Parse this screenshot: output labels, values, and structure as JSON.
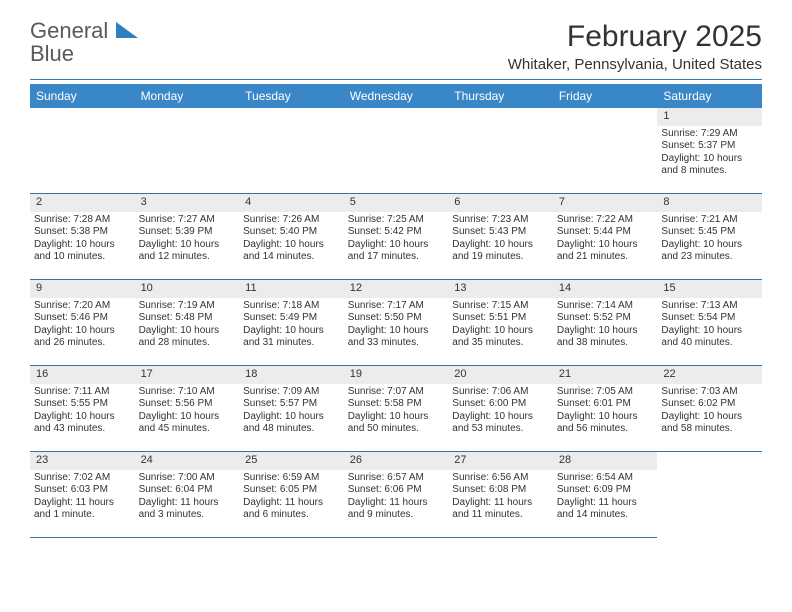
{
  "logo": {
    "text_gray": "General",
    "text_blue": "Blue",
    "shape_color": "#2f7fbf"
  },
  "header": {
    "title": "February 2025",
    "location": "Whitaker, Pennsylvania, United States"
  },
  "colors": {
    "header_bg": "#3a87c7",
    "header_text": "#ffffff",
    "divider": "#2f7fbf",
    "daynum_bg": "#ececec",
    "cell_border": "#3a6fa0",
    "text": "#333333",
    "logo_gray": "#5a5a5a"
  },
  "weekdays": [
    "Sunday",
    "Monday",
    "Tuesday",
    "Wednesday",
    "Thursday",
    "Friday",
    "Saturday"
  ],
  "grid": {
    "leading_empty": 6,
    "days": [
      {
        "n": "1",
        "sunrise": "Sunrise: 7:29 AM",
        "sunset": "Sunset: 5:37 PM",
        "day1": "Daylight: 10 hours",
        "day2": "and 8 minutes."
      },
      {
        "n": "2",
        "sunrise": "Sunrise: 7:28 AM",
        "sunset": "Sunset: 5:38 PM",
        "day1": "Daylight: 10 hours",
        "day2": "and 10 minutes."
      },
      {
        "n": "3",
        "sunrise": "Sunrise: 7:27 AM",
        "sunset": "Sunset: 5:39 PM",
        "day1": "Daylight: 10 hours",
        "day2": "and 12 minutes."
      },
      {
        "n": "4",
        "sunrise": "Sunrise: 7:26 AM",
        "sunset": "Sunset: 5:40 PM",
        "day1": "Daylight: 10 hours",
        "day2": "and 14 minutes."
      },
      {
        "n": "5",
        "sunrise": "Sunrise: 7:25 AM",
        "sunset": "Sunset: 5:42 PM",
        "day1": "Daylight: 10 hours",
        "day2": "and 17 minutes."
      },
      {
        "n": "6",
        "sunrise": "Sunrise: 7:23 AM",
        "sunset": "Sunset: 5:43 PM",
        "day1": "Daylight: 10 hours",
        "day2": "and 19 minutes."
      },
      {
        "n": "7",
        "sunrise": "Sunrise: 7:22 AM",
        "sunset": "Sunset: 5:44 PM",
        "day1": "Daylight: 10 hours",
        "day2": "and 21 minutes."
      },
      {
        "n": "8",
        "sunrise": "Sunrise: 7:21 AM",
        "sunset": "Sunset: 5:45 PM",
        "day1": "Daylight: 10 hours",
        "day2": "and 23 minutes."
      },
      {
        "n": "9",
        "sunrise": "Sunrise: 7:20 AM",
        "sunset": "Sunset: 5:46 PM",
        "day1": "Daylight: 10 hours",
        "day2": "and 26 minutes."
      },
      {
        "n": "10",
        "sunrise": "Sunrise: 7:19 AM",
        "sunset": "Sunset: 5:48 PM",
        "day1": "Daylight: 10 hours",
        "day2": "and 28 minutes."
      },
      {
        "n": "11",
        "sunrise": "Sunrise: 7:18 AM",
        "sunset": "Sunset: 5:49 PM",
        "day1": "Daylight: 10 hours",
        "day2": "and 31 minutes."
      },
      {
        "n": "12",
        "sunrise": "Sunrise: 7:17 AM",
        "sunset": "Sunset: 5:50 PM",
        "day1": "Daylight: 10 hours",
        "day2": "and 33 minutes."
      },
      {
        "n": "13",
        "sunrise": "Sunrise: 7:15 AM",
        "sunset": "Sunset: 5:51 PM",
        "day1": "Daylight: 10 hours",
        "day2": "and 35 minutes."
      },
      {
        "n": "14",
        "sunrise": "Sunrise: 7:14 AM",
        "sunset": "Sunset: 5:52 PM",
        "day1": "Daylight: 10 hours",
        "day2": "and 38 minutes."
      },
      {
        "n": "15",
        "sunrise": "Sunrise: 7:13 AM",
        "sunset": "Sunset: 5:54 PM",
        "day1": "Daylight: 10 hours",
        "day2": "and 40 minutes."
      },
      {
        "n": "16",
        "sunrise": "Sunrise: 7:11 AM",
        "sunset": "Sunset: 5:55 PM",
        "day1": "Daylight: 10 hours",
        "day2": "and 43 minutes."
      },
      {
        "n": "17",
        "sunrise": "Sunrise: 7:10 AM",
        "sunset": "Sunset: 5:56 PM",
        "day1": "Daylight: 10 hours",
        "day2": "and 45 minutes."
      },
      {
        "n": "18",
        "sunrise": "Sunrise: 7:09 AM",
        "sunset": "Sunset: 5:57 PM",
        "day1": "Daylight: 10 hours",
        "day2": "and 48 minutes."
      },
      {
        "n": "19",
        "sunrise": "Sunrise: 7:07 AM",
        "sunset": "Sunset: 5:58 PM",
        "day1": "Daylight: 10 hours",
        "day2": "and 50 minutes."
      },
      {
        "n": "20",
        "sunrise": "Sunrise: 7:06 AM",
        "sunset": "Sunset: 6:00 PM",
        "day1": "Daylight: 10 hours",
        "day2": "and 53 minutes."
      },
      {
        "n": "21",
        "sunrise": "Sunrise: 7:05 AM",
        "sunset": "Sunset: 6:01 PM",
        "day1": "Daylight: 10 hours",
        "day2": "and 56 minutes."
      },
      {
        "n": "22",
        "sunrise": "Sunrise: 7:03 AM",
        "sunset": "Sunset: 6:02 PM",
        "day1": "Daylight: 10 hours",
        "day2": "and 58 minutes."
      },
      {
        "n": "23",
        "sunrise": "Sunrise: 7:02 AM",
        "sunset": "Sunset: 6:03 PM",
        "day1": "Daylight: 11 hours",
        "day2": "and 1 minute."
      },
      {
        "n": "24",
        "sunrise": "Sunrise: 7:00 AM",
        "sunset": "Sunset: 6:04 PM",
        "day1": "Daylight: 11 hours",
        "day2": "and 3 minutes."
      },
      {
        "n": "25",
        "sunrise": "Sunrise: 6:59 AM",
        "sunset": "Sunset: 6:05 PM",
        "day1": "Daylight: 11 hours",
        "day2": "and 6 minutes."
      },
      {
        "n": "26",
        "sunrise": "Sunrise: 6:57 AM",
        "sunset": "Sunset: 6:06 PM",
        "day1": "Daylight: 11 hours",
        "day2": "and 9 minutes."
      },
      {
        "n": "27",
        "sunrise": "Sunrise: 6:56 AM",
        "sunset": "Sunset: 6:08 PM",
        "day1": "Daylight: 11 hours",
        "day2": "and 11 minutes."
      },
      {
        "n": "28",
        "sunrise": "Sunrise: 6:54 AM",
        "sunset": "Sunset: 6:09 PM",
        "day1": "Daylight: 11 hours",
        "day2": "and 14 minutes."
      }
    ]
  }
}
